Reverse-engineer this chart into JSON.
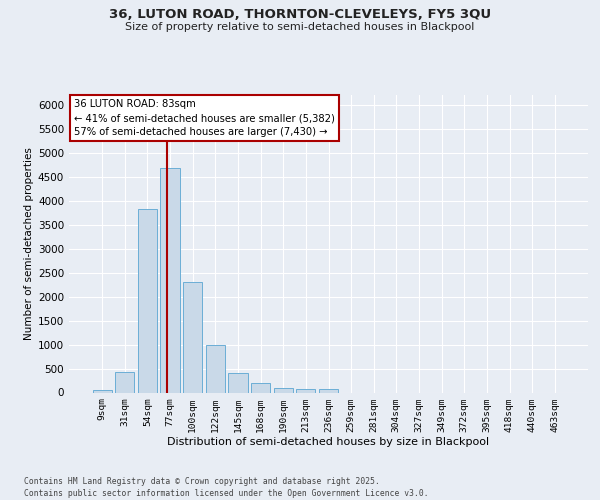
{
  "title_line1": "36, LUTON ROAD, THORNTON-CLEVELEYS, FY5 3QU",
  "title_line2": "Size of property relative to semi-detached houses in Blackpool",
  "xlabel": "Distribution of semi-detached houses by size in Blackpool",
  "ylabel": "Number of semi-detached properties",
  "categories": [
    "9sqm",
    "31sqm",
    "54sqm",
    "77sqm",
    "100sqm",
    "122sqm",
    "145sqm",
    "168sqm",
    "190sqm",
    "213sqm",
    "236sqm",
    "259sqm",
    "281sqm",
    "304sqm",
    "327sqm",
    "349sqm",
    "372sqm",
    "395sqm",
    "418sqm",
    "440sqm",
    "463sqm"
  ],
  "values": [
    50,
    430,
    3820,
    4680,
    2300,
    1000,
    410,
    200,
    90,
    70,
    65,
    0,
    0,
    0,
    0,
    0,
    0,
    0,
    0,
    0,
    0
  ],
  "bar_color": "#c9d9e8",
  "bar_edge_color": "#6baed6",
  "background_color": "#e8edf4",
  "grid_color": "#ffffff",
  "ylim_max": 6200,
  "yticks": [
    0,
    500,
    1000,
    1500,
    2000,
    2500,
    3000,
    3500,
    4000,
    4500,
    5000,
    5500,
    6000
  ],
  "red_line_x": 2.85,
  "annotation_title": "36 LUTON ROAD: 83sqm",
  "annotation_line1": "← 41% of semi-detached houses are smaller (5,382)",
  "annotation_line2": "57% of semi-detached houses are larger (7,430) →",
  "red_line_color": "#aa0000",
  "ann_box_edge": "#aa0000",
  "footnote_line1": "Contains HM Land Registry data © Crown copyright and database right 2025.",
  "footnote_line2": "Contains public sector information licensed under the Open Government Licence v3.0."
}
